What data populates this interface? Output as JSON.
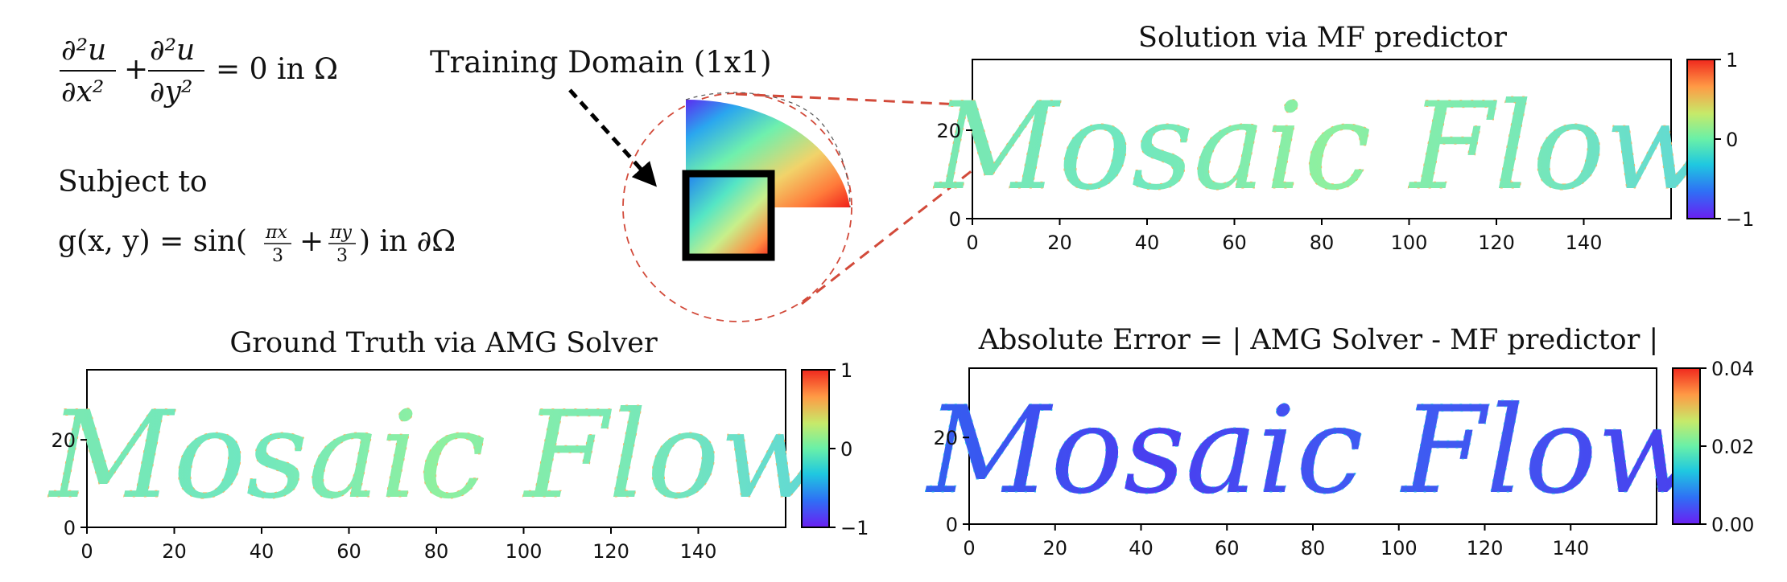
{
  "equation": {
    "term1_num": "∂²u",
    "term1_den": "∂x²",
    "plus": "+",
    "term2_num": "∂²u",
    "term2_den": "∂y²",
    "rest": "= 0 in Ω",
    "subject_to": "Subject to",
    "bc_lhs": "g(x, y) = sin(",
    "bc_frac1_num": "πx",
    "bc_frac1_den": "3",
    "bc_plus": "+",
    "bc_frac2_num": "πy",
    "bc_frac2_den": "3",
    "bc_rhs": ") in ∂Ω"
  },
  "training_label": "Training Domain (1x1)",
  "word_art": "Mosaic Flow",
  "colors": {
    "accent_dashed": "#d24a3a",
    "rainbow": [
      "#6a1ff2",
      "#2f6ff5",
      "#1fc8e0",
      "#69f0a8",
      "#c6ea6a",
      "#ff9a45",
      "#f0281e"
    ]
  },
  "chart_data": [
    {
      "type": "heatmap",
      "id": "mf",
      "title": "Solution via MF predictor",
      "xticks": [
        "0",
        "20",
        "40",
        "60",
        "80",
        "100",
        "120",
        "140"
      ],
      "yticks": [
        "0",
        "20"
      ],
      "xlim": [
        0,
        160
      ],
      "ylim": [
        0,
        36
      ],
      "colorbar": {
        "min": -1,
        "max": 1,
        "ticks": [
          "1",
          "0",
          "−1"
        ],
        "colormap": "rainbow"
      },
      "content": "Mosaic Flow"
    },
    {
      "type": "heatmap",
      "id": "amg",
      "title": "Ground Truth via AMG Solver",
      "xticks": [
        "0",
        "20",
        "40",
        "60",
        "80",
        "100",
        "120",
        "140"
      ],
      "yticks": [
        "0",
        "20"
      ],
      "xlim": [
        0,
        160
      ],
      "ylim": [
        0,
        36
      ],
      "colorbar": {
        "min": -1,
        "max": 1,
        "ticks": [
          "1",
          "0",
          "−1"
        ],
        "colormap": "rainbow"
      },
      "content": "Mosaic Flow"
    },
    {
      "type": "heatmap",
      "id": "err",
      "title": "Absolute Error = | AMG Solver - MF predictor |",
      "xticks": [
        "0",
        "20",
        "40",
        "60",
        "80",
        "100",
        "120",
        "140"
      ],
      "yticks": [
        "0",
        "20"
      ],
      "xlim": [
        0,
        160
      ],
      "ylim": [
        0,
        36
      ],
      "colorbar": {
        "min": 0,
        "max": 0.04,
        "ticks": [
          "0.04",
          "0.02",
          "0.00"
        ],
        "colormap": "rainbow"
      },
      "content": "Mosaic Flow"
    }
  ]
}
